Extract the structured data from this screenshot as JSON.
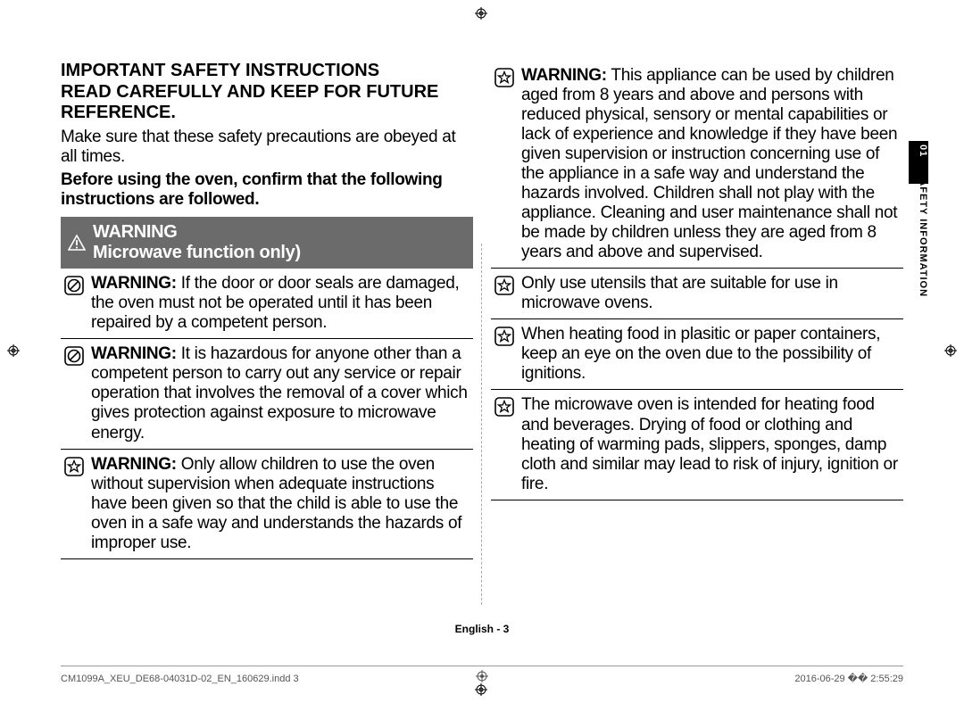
{
  "page": {
    "heading_line1": "IMPORTANT SAFETY INSTRUCTIONS",
    "heading_line2": "READ CAREFULLY AND KEEP FOR FUTURE REFERENCE.",
    "intro": "Make sure that these safety precautions are obeyed at all times.",
    "intro_bold": "Before using the oven, confirm that the following instructions are followed.",
    "warning_bar_label": "WARNING",
    "warning_bar_sub": "Microwave function only)",
    "left_items": [
      {
        "icon": "prohibit",
        "bold": "WARNING:",
        "text": " If the door or door seals are damaged, the oven must not be operated until it has been repaired by a competent person."
      },
      {
        "icon": "prohibit",
        "bold": "WARNING:",
        "text": " It is hazardous for anyone other than a competent person to carry out any service or repair operation that involves the removal of a cover which gives protection against exposure to microwave energy."
      },
      {
        "icon": "star",
        "bold": "WARNING:",
        "text": " Only allow children to use the oven without supervision when adequate instructions have been given so that the child is able to use the oven in a safe way and understands the hazards of improper use."
      }
    ],
    "right_items": [
      {
        "icon": "star",
        "bold": "WARNING:",
        "text": " This appliance can be used by children aged from 8 years and above and persons with reduced physical, sensory or mental capabilities or lack of experience and knowledge if they have been given supervision or instruction concerning use of the appliance in a safe way and understand the hazards involved. Children shall not play with the appliance. Cleaning and user maintenance shall not be made by children unless they are aged from 8 years and above and supervised."
      },
      {
        "icon": "star",
        "bold": "",
        "text": "Only use utensils that are suitable for use in microwave ovens."
      },
      {
        "icon": "star",
        "bold": "",
        "text": "When heating food in plasitic or paper containers, keep an eye on the oven due to the possibility of ignitions."
      },
      {
        "icon": "star",
        "bold": "",
        "text": "The microwave oven is intended for heating food and beverages. Drying of food or clothing and heating of warming pads, slippers, sponges, damp cloth and similar may lead to risk of injury, ignition or fire."
      }
    ],
    "side_tab_num": "01",
    "side_tab_label": "SAFETY INFORMATION",
    "footer_lang": "English - 3",
    "footer_left": "CM1099A_XEU_DE68-04031D-02_EN_160629.indd   3",
    "footer_right": "2016-06-29   �� 2:55:29"
  },
  "colors": {
    "warning_bar_bg": "#6b6b6b",
    "text": "#000000",
    "rule": "#000000"
  }
}
